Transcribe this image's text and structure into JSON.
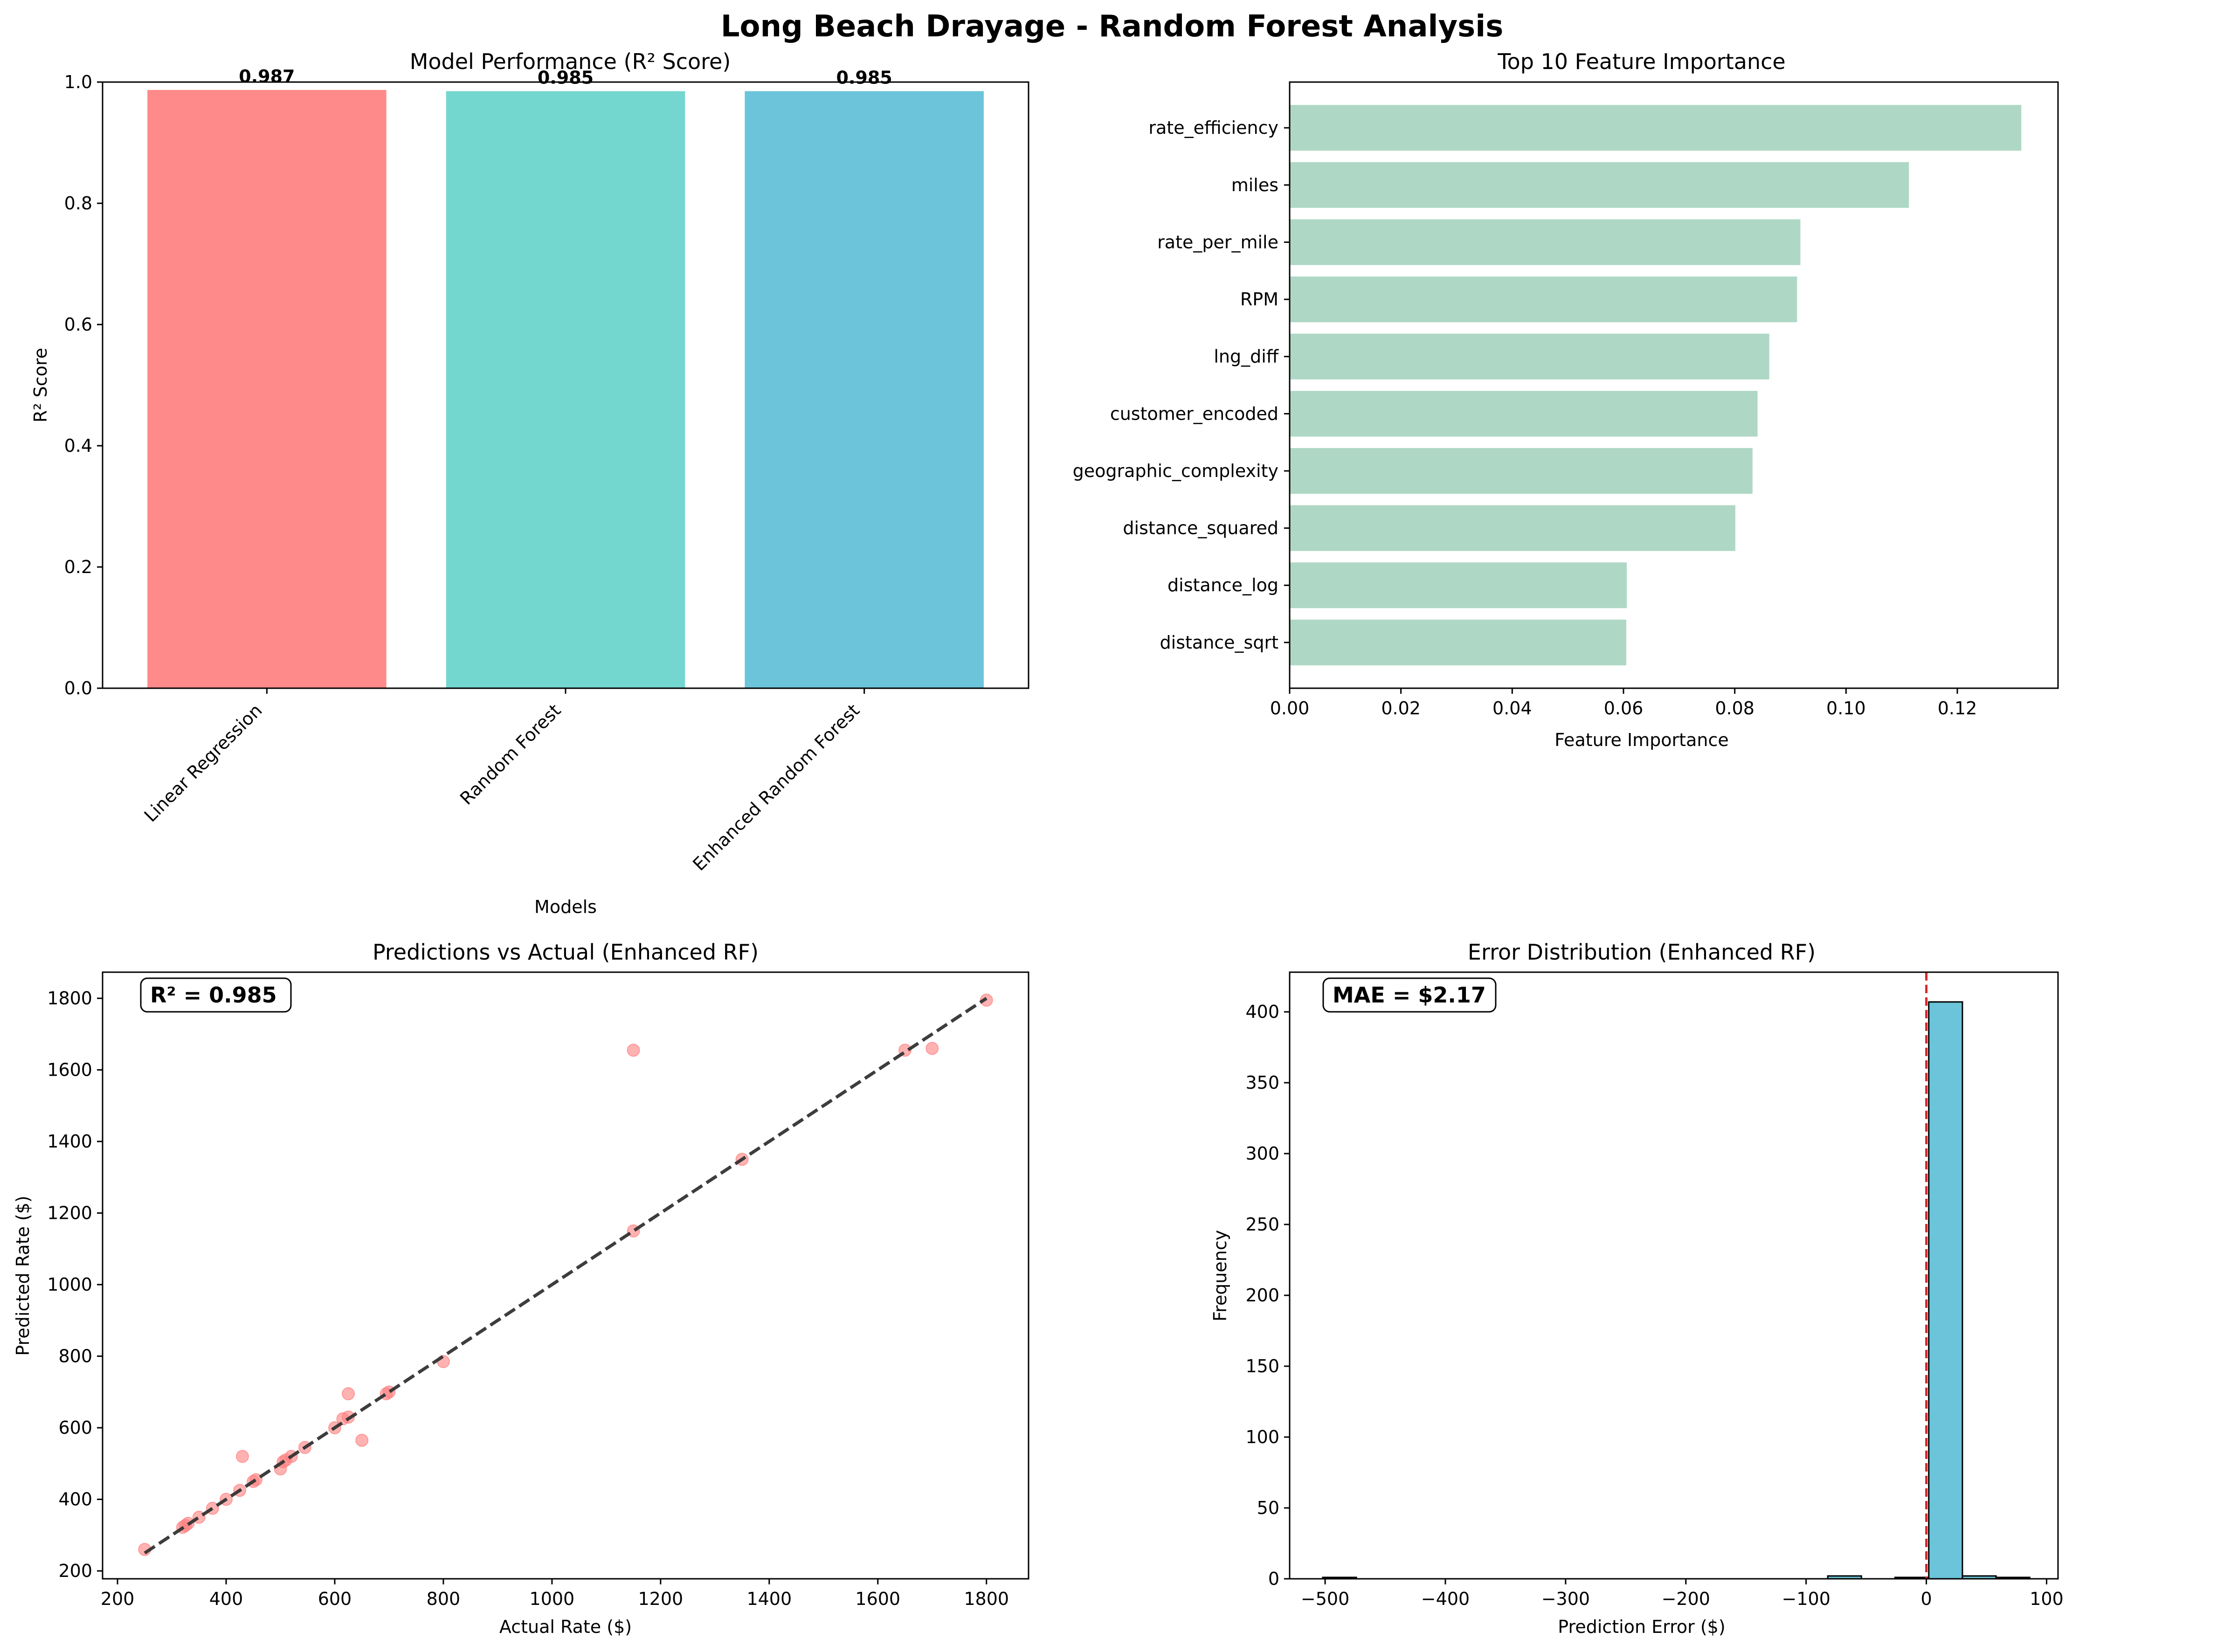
{
  "suptitle": "Long Beach Drayage - Random Forest Analysis",
  "colors": {
    "bar_lr": "#ff8a8a",
    "bar_rf": "#74d7cf",
    "bar_erf": "#6bc4d9",
    "feature_bar": "#aed8c5",
    "scatter": "#ff7f7f",
    "hist": "#6bc4d9",
    "zero_line": "#d62728"
  },
  "chart_data": [
    {
      "type": "bar",
      "title": "Model Performance (R² Score)",
      "xlabel": "Models",
      "ylabel": "R² Score",
      "categories": [
        "Linear Regression",
        "Random Forest",
        "Enhanced Random Forest"
      ],
      "values": [
        0.987,
        0.985,
        0.985
      ],
      "value_labels": [
        "0.987",
        "0.985",
        "0.985"
      ],
      "ylim": [
        0,
        1.0
      ],
      "yticks": [
        0.0,
        0.2,
        0.4,
        0.6,
        0.8,
        1.0
      ],
      "ytick_labels": [
        "0.0",
        "0.2",
        "0.4",
        "0.6",
        "0.8",
        "1.0"
      ]
    },
    {
      "type": "bar",
      "orientation": "horizontal",
      "title": "Top 10 Feature Importance",
      "xlabel": "Feature Importance",
      "categories": [
        "rate_efficiency",
        "miles",
        "rate_per_mile",
        "RPM",
        "lng_diff",
        "customer_encoded",
        "geographic_complexity",
        "distance_squared",
        "distance_log",
        "distance_sqrt"
      ],
      "values": [
        0.1315,
        0.1113,
        0.0918,
        0.0912,
        0.0862,
        0.0841,
        0.0832,
        0.0801,
        0.0606,
        0.0605
      ],
      "xlim": [
        0,
        0.1381
      ],
      "xticks": [
        0.0,
        0.02,
        0.04,
        0.06,
        0.08,
        0.1,
        0.12
      ],
      "xtick_labels": [
        "0.00",
        "0.02",
        "0.04",
        "0.06",
        "0.08",
        "0.10",
        "0.12"
      ]
    },
    {
      "type": "scatter",
      "title": "Predictions vs Actual (Enhanced RF)",
      "xlabel": "Actual Rate ($)",
      "ylabel": "Predicted Rate ($)",
      "annotation": "R² = 0.985",
      "xlim": [
        172.5,
        1877.5
      ],
      "ylim": [
        178,
        1873
      ],
      "xticks": [
        200,
        400,
        600,
        800,
        1000,
        1200,
        1400,
        1600,
        1800
      ],
      "yticks": [
        200,
        400,
        600,
        800,
        1000,
        1200,
        1400,
        1600,
        1800
      ],
      "x": [
        250,
        320,
        325,
        330,
        350,
        375,
        400,
        425,
        430,
        450,
        455,
        500,
        505,
        510,
        520,
        545,
        600,
        615,
        625,
        625,
        650,
        695,
        700,
        800,
        1150,
        1150,
        1350,
        1650,
        1700,
        1800
      ],
      "y": [
        260,
        322,
        327,
        333,
        350,
        375,
        400,
        425,
        520,
        450,
        455,
        485,
        505,
        510,
        520,
        545,
        600,
        625,
        630,
        695,
        565,
        695,
        700,
        785,
        1150,
        1655,
        1350,
        1655,
        1660,
        1795
      ],
      "reference_line": {
        "x": [
          250,
          1800
        ],
        "y": [
          250,
          1800
        ]
      }
    },
    {
      "type": "bar",
      "subtype": "histogram",
      "title": "Error Distribution (Enhanced RF)",
      "xlabel": "Prediction Error ($)",
      "ylabel": "Frequency",
      "annotation": "MAE = $2.17",
      "xlim": [
        -529.5,
        109.5
      ],
      "ylim": [
        0,
        428
      ],
      "xticks": [
        -500,
        -400,
        -300,
        -200,
        -100,
        0,
        100
      ],
      "xtick_labels": [
        "−500",
        "−400",
        "−300",
        "−200",
        "−100",
        "0",
        "100"
      ],
      "yticks": [
        0,
        50,
        100,
        150,
        200,
        250,
        300,
        350,
        400
      ],
      "bin_edges": [
        -502,
        -474,
        -446,
        -418,
        -390,
        -362,
        -334,
        -306,
        -278,
        -250,
        -222,
        -194,
        -166,
        -138,
        -110,
        -82,
        -54,
        -26,
        2,
        30,
        58,
        86
      ],
      "counts": [
        1,
        0,
        0,
        0,
        0,
        0,
        0,
        0,
        0,
        0,
        0,
        0,
        0,
        0,
        0,
        2,
        0,
        1,
        407,
        2,
        1,
        1
      ],
      "mean_line_x": 0
    }
  ]
}
